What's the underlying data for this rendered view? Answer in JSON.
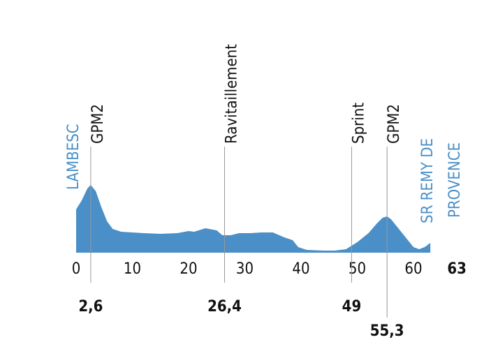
{
  "chart_data": {
    "type": "area",
    "start_label": "LAMBESC",
    "finish_label": [
      "SR REMY DE",
      "PROVENCE"
    ],
    "x": [
      0,
      1,
      2,
      2.6,
      3.5,
      4.5,
      5.5,
      6.5,
      8,
      10,
      12,
      15,
      18,
      20,
      21,
      23,
      25,
      26,
      27.5,
      29,
      31,
      33,
      35,
      37,
      38.5,
      39.5,
      41,
      44,
      46,
      48,
      50,
      52,
      53.5,
      54.5,
      55.3,
      56,
      57,
      58,
      59,
      60,
      61,
      62,
      63
    ],
    "values": [
      62,
      75,
      92,
      97,
      88,
      65,
      45,
      34,
      30,
      29,
      28,
      27,
      28,
      31,
      30,
      35,
      32,
      25,
      25,
      28,
      28,
      29,
      29,
      22,
      18,
      8,
      4,
      3,
      3,
      5,
      15,
      28,
      42,
      50,
      52,
      48,
      38,
      28,
      18,
      8,
      5,
      8,
      14
    ],
    "color": "#4a8fc7",
    "xlim": [
      0,
      63
    ],
    "ylim": [
      0,
      100
    ],
    "xticks": [
      0,
      10,
      20,
      30,
      40,
      50,
      60,
      63
    ],
    "markers": [
      {
        "label": "GPM2",
        "km": 2.6,
        "km_label": "2,6"
      },
      {
        "label": "Ravitaillement",
        "km": 26.4,
        "km_label": "26,4"
      },
      {
        "label": "Sprint",
        "km": 49
      },
      {
        "label": "GPM2",
        "km": 55.3,
        "km_label": "55,3"
      }
    ]
  }
}
